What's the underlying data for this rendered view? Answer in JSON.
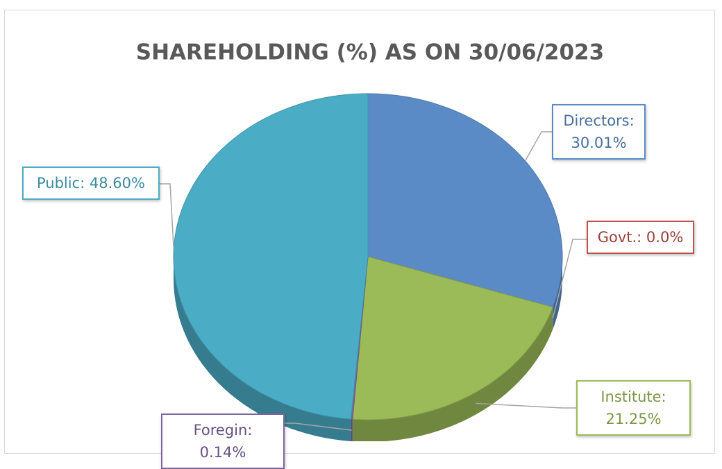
{
  "chart_data": {
    "type": "pie",
    "title": "SHAREHOLDING (%) AS ON 30/06/2023",
    "values": [
      30.01,
      0.0,
      21.25,
      0.14,
      48.6
    ],
    "value_labels": [
      "Directors: 30.01%",
      "Govt.: 0.0%",
      "Institute: 21.25%",
      "Foregin: 0.14%",
      "Public: 48.60%"
    ],
    "colors": [
      "#5b8bc7",
      "#c0504d",
      "#9bbb59",
      "#8064a2",
      "#4bacc6"
    ]
  }
}
